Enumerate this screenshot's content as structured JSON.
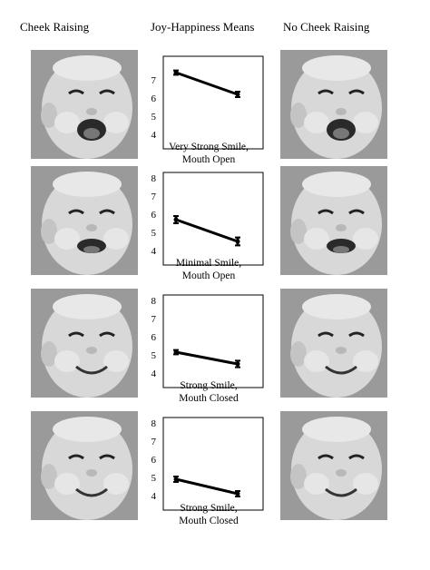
{
  "headers": {
    "left": "Cheek Raising",
    "center": "Joy-Happiness Means",
    "right": "No Cheek Raising"
  },
  "rows": [
    {
      "caption_line1": "Very Strong Smile,",
      "caption_line2": "Mouth Open",
      "expression": "very-strong-open"
    },
    {
      "caption_line1": "Minimal Smile,",
      "caption_line2": "Mouth Open",
      "expression": "minimal-open"
    },
    {
      "caption_line1": "Strong Smile,",
      "caption_line2": "Mouth Closed",
      "expression": "strong-closed"
    },
    {
      "caption_line1": "Strong Smile,",
      "caption_line2": "Mouth Closed",
      "expression": "strong-closed-2"
    }
  ],
  "chart_data": [
    {
      "type": "line",
      "ylim": [
        4,
        8
      ],
      "yticks": [
        4,
        5,
        6,
        7
      ],
      "x": [
        "Cheek Raising",
        "No Cheek Raising"
      ],
      "series": [
        {
          "values": [
            7.4,
            6.2
          ],
          "error": [
            0.12,
            0.15
          ]
        }
      ]
    },
    {
      "type": "line",
      "ylim": [
        4,
        8
      ],
      "yticks": [
        4,
        5,
        6,
        7,
        8
      ],
      "x": [
        "Cheek Raising",
        "No Cheek Raising"
      ],
      "series": [
        {
          "values": [
            5.7,
            4.5
          ],
          "error": [
            0.2,
            0.22
          ]
        }
      ]
    },
    {
      "type": "line",
      "ylim": [
        4,
        8
      ],
      "yticks": [
        4,
        5,
        6,
        7,
        8
      ],
      "x": [
        "Cheek Raising",
        "No Cheek Raising"
      ],
      "series": [
        {
          "values": [
            5.15,
            4.5
          ],
          "error": [
            0.12,
            0.18
          ]
        }
      ]
    },
    {
      "type": "line",
      "ylim": [
        4,
        8
      ],
      "yticks": [
        4,
        5,
        6,
        7,
        8
      ],
      "x": [
        "Cheek Raising",
        "No Cheek Raising"
      ],
      "series": [
        {
          "values": [
            4.9,
            4.1
          ],
          "error": [
            0.15,
            0.15
          ]
        }
      ]
    }
  ],
  "colors": {
    "line": "#000000",
    "frame": "#000000",
    "photo_bg": "#8a8a8a"
  }
}
